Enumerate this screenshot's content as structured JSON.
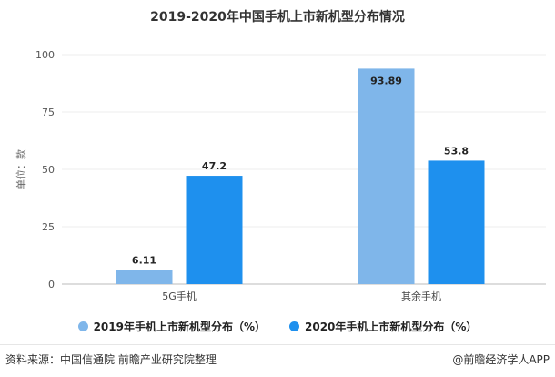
{
  "chart_data": {
    "type": "bar",
    "title": "2019-2020年中国手机上市新机型分布情况",
    "ylabel": "单位：款",
    "xlabel": "",
    "ylim": [
      0,
      100
    ],
    "yticks": [
      0,
      25,
      50,
      75,
      100
    ],
    "categories": [
      "5G手机",
      "其余手机"
    ],
    "series": [
      {
        "name": "2019年手机上市新机型分布（%）",
        "values": [
          6.11,
          93.89
        ],
        "labels": [
          "6.11",
          "93.89"
        ],
        "color": "#7fb6ea"
      },
      {
        "name": "2020年手机上市新机型分布（%）",
        "values": [
          47.2,
          53.8
        ],
        "labels": [
          "47.2",
          "53.8"
        ],
        "color": "#1e90ee"
      }
    ],
    "legend": "bottom",
    "grid": true
  },
  "footer": {
    "source": "资料来源：中国信通院 前瞻产业研究院整理",
    "brand": "@前瞻经济学人APP"
  }
}
